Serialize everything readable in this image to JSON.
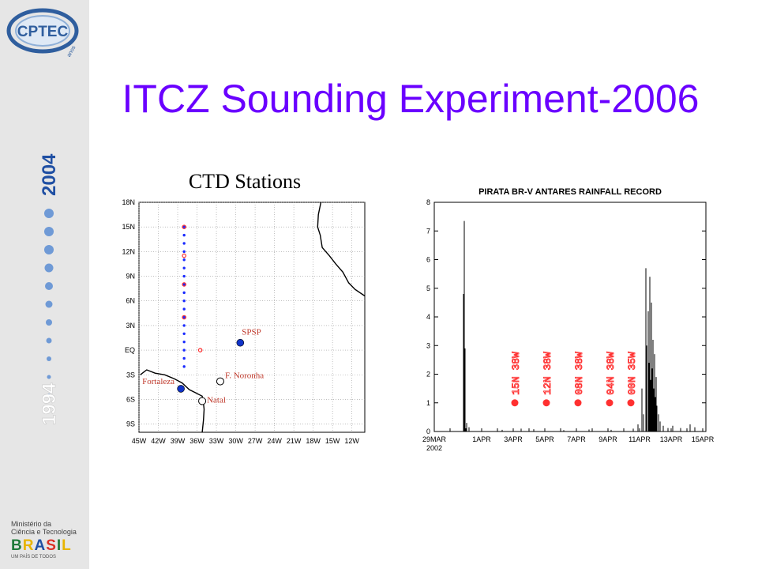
{
  "slide": {
    "title": "ITCZ Sounding Experiment-2006"
  },
  "sidebar": {
    "logo_text": "CPTEC",
    "logo_sub": "anos",
    "year_top": "2004",
    "year_bottom": "1994",
    "ministry_line1": "Ministério da",
    "ministry_line2": "Ciência e Tecnologia",
    "brasil": "BRASIL",
    "brasil_sub": "UM PAÍS DE TODOS",
    "colors": {
      "sidebar_bg": "#e6e6e6",
      "year": "#1f4fa3",
      "dot": "#6f9ad6"
    }
  },
  "chart_data": [
    {
      "type": "scatter",
      "title": "CTD Stations",
      "xlabel": "",
      "ylabel": "",
      "xlim": [
        -45,
        -10
      ],
      "ylim": [
        -10,
        18
      ],
      "x_ticks": [
        "45W",
        "42W",
        "39W",
        "36W",
        "33W",
        "30W",
        "27W",
        "24W",
        "21W",
        "18W",
        "15W",
        "12W"
      ],
      "x_tick_values": [
        -45,
        -42,
        -39,
        -36,
        -33,
        -30,
        -27,
        -24,
        -21,
        -18,
        -15,
        -12
      ],
      "y_ticks": [
        "9S",
        "6S",
        "3S",
        "EQ",
        "3N",
        "6N",
        "9N",
        "12N",
        "15N",
        "18N"
      ],
      "y_tick_values": [
        -9,
        -6,
        -3,
        0,
        3,
        6,
        9,
        12,
        15,
        18
      ],
      "grid": true,
      "series": [
        {
          "name": "blue stations",
          "color": "#1a2bff",
          "lon": -38,
          "lat": [
            15,
            14,
            13,
            12,
            11,
            10,
            9,
            8,
            7,
            6,
            5,
            4,
            3,
            2,
            1,
            0,
            -1,
            -2
          ]
        },
        {
          "name": "red stations",
          "color": "#ff3030",
          "points": [
            [
              -38,
              15
            ],
            [
              -38,
              11.5
            ],
            [
              -38,
              8
            ],
            [
              -38,
              4
            ],
            [
              -35.5,
              0
            ]
          ]
        }
      ],
      "labeled_points": [
        {
          "label": "SPSP",
          "lon": -29.3,
          "lat": 0.9,
          "style": "filled",
          "color": "#1033c8"
        },
        {
          "label": "F. Noronha",
          "lon": -32.4,
          "lat": -3.8,
          "style": "open",
          "color": "#000000"
        },
        {
          "label": "Fortaleza",
          "lon": -38.5,
          "lat": -4.7,
          "style": "filled",
          "color": "#1033c8"
        },
        {
          "label": "Natal",
          "lon": -35.2,
          "lat": -6.2,
          "style": "open",
          "color": "#000000"
        }
      ],
      "label_color": "#c0392b",
      "coast": [
        [
          -44.8,
          -3.0
        ],
        [
          -43.8,
          -2.4
        ],
        [
          -42.5,
          -2.8
        ],
        [
          -41,
          -3.0
        ],
        [
          -39.5,
          -3.5
        ],
        [
          -38.3,
          -4.0
        ],
        [
          -37.2,
          -4.8
        ],
        [
          -36.2,
          -5.2
        ],
        [
          -35.2,
          -5.6
        ],
        [
          -35.0,
          -6.5
        ],
        [
          -34.9,
          -7.2
        ],
        [
          -35.0,
          -8.5
        ],
        [
          -35.2,
          -10
        ]
      ],
      "coast_africa": [
        [
          -16.8,
          18
        ],
        [
          -17.2,
          16.5
        ],
        [
          -17.3,
          15.0
        ],
        [
          -16.9,
          14.0
        ],
        [
          -16.6,
          12.5
        ],
        [
          -15.5,
          11.5
        ],
        [
          -14.5,
          10.5
        ],
        [
          -13.4,
          9.5
        ],
        [
          -12.5,
          8.2
        ],
        [
          -11.5,
          7.4
        ],
        [
          -10,
          6.6
        ]
      ]
    },
    {
      "type": "bar",
      "title": "PIRATA BR-V ANTARES RAINFALL RECORD",
      "xlabel": "",
      "ylabel": "",
      "ylim": [
        0,
        8
      ],
      "y_ticks": [
        0,
        1,
        2,
        3,
        4,
        5,
        6,
        7,
        8
      ],
      "x_range_days": [
        0,
        17.2
      ],
      "x_ticks": [
        {
          "label": "29MAR",
          "sub": "2002",
          "day": 0
        },
        {
          "label": "1APR",
          "day": 3
        },
        {
          "label": "3APR",
          "day": 5
        },
        {
          "label": "5APR",
          "day": 7
        },
        {
          "label": "7APR",
          "day": 9
        },
        {
          "label": "9APR",
          "day": 11
        },
        {
          "label": "11APR",
          "day": 13
        },
        {
          "label": "13APR",
          "day": 15
        },
        {
          "label": "15APR",
          "day": 17
        }
      ],
      "spikes": [
        [
          1.85,
          4.8
        ],
        [
          1.9,
          7.35
        ],
        [
          1.95,
          2.9
        ],
        [
          2.05,
          0.3
        ],
        [
          2.2,
          0.15
        ],
        [
          3.0,
          0.08
        ],
        [
          4.3,
          0.06
        ],
        [
          5.5,
          0.1
        ],
        [
          6.3,
          0.08
        ],
        [
          8.2,
          0.05
        ],
        [
          9.8,
          0.07
        ],
        [
          11.2,
          0.06
        ],
        [
          12.6,
          0.1
        ],
        [
          12.9,
          0.25
        ],
        [
          13.15,
          1.5
        ],
        [
          13.25,
          0.6
        ],
        [
          13.4,
          5.7
        ],
        [
          13.45,
          3.0
        ],
        [
          13.55,
          4.2
        ],
        [
          13.6,
          2.4
        ],
        [
          13.65,
          5.4
        ],
        [
          13.7,
          1.8
        ],
        [
          13.75,
          4.5
        ],
        [
          13.8,
          2.2
        ],
        [
          13.85,
          3.2
        ],
        [
          13.9,
          1.5
        ],
        [
          13.95,
          2.7
        ],
        [
          14.0,
          1.2
        ],
        [
          14.05,
          1.9
        ],
        [
          14.1,
          0.9
        ],
        [
          14.2,
          0.6
        ],
        [
          14.3,
          0.35
        ],
        [
          14.5,
          0.2
        ],
        [
          14.8,
          0.12
        ],
        [
          15.1,
          0.2
        ],
        [
          15.6,
          0.12
        ],
        [
          16.2,
          0.25
        ],
        [
          16.5,
          0.15
        ]
      ],
      "annotations": [
        {
          "label": "15N 38W",
          "day": 5.1,
          "value": 1
        },
        {
          "label": "12N 38W",
          "day": 7.1,
          "value": 1
        },
        {
          "label": "08N 38W",
          "day": 9.1,
          "value": 1
        },
        {
          "label": "04N 38W",
          "day": 11.1,
          "value": 1
        },
        {
          "label": "00N 35W",
          "day": 12.45,
          "value": 1
        }
      ],
      "annotation_color": "#ff3030",
      "grid": false
    }
  ]
}
